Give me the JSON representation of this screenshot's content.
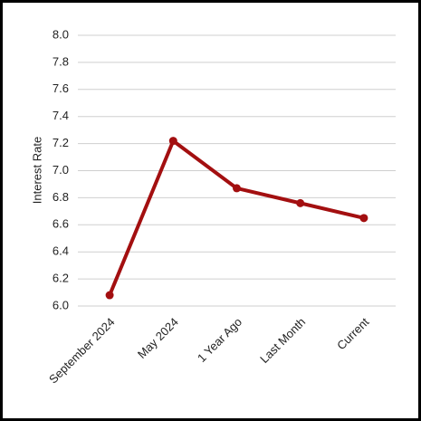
{
  "chart_data": {
    "type": "line",
    "ylabel": "Interest Rate",
    "categories": [
      "September 2024",
      "May 2024",
      "1 Year Ago",
      "Last Month",
      "Current"
    ],
    "values": [
      6.08,
      7.22,
      6.87,
      6.76,
      6.65
    ],
    "color": "#a30f10",
    "ylim": [
      6.0,
      8.0
    ],
    "yticks": [
      {
        "value": 6,
        "label": "6.0"
      },
      6.2,
      6.4,
      6.6,
      6.8,
      {
        "value": 7,
        "label": "7.0"
      },
      7.2,
      7.4,
      7.6,
      7.8,
      {
        "value": 8,
        "label": "8.0"
      }
    ],
    "grid": true
  }
}
